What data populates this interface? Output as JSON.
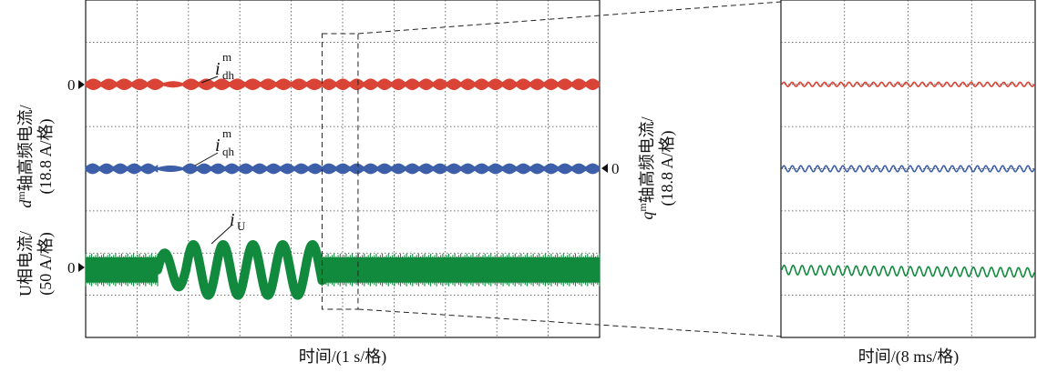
{
  "chart_data": [
    {
      "type": "line",
      "title": "",
      "xlabel": "时间/(1 s/格)",
      "x_divisions": 10,
      "y_divisions": 8,
      "grid": true,
      "left_axis_labels": [
        {
          "prefix": "d",
          "sup": "m",
          "text": "轴高频电流/",
          "scale": "(18.8 A/格)"
        },
        {
          "prefix": "",
          "sup": "",
          "text": "U相电流/",
          "scale": "(50 A/格)"
        }
      ],
      "right_axis_label": {
        "prefix": "q",
        "sup": "m",
        "text": "轴高频电流/",
        "scale": "(18.8 A/格)"
      },
      "zero_markers": [
        "0",
        "0",
        "0"
      ],
      "series": [
        {
          "name": "i",
          "sub": "dh",
          "sup": "m",
          "color": "#d94436",
          "offset_div": 2.0,
          "segments": [
            {
              "x_start": 0.0,
              "x_end": 1.5,
              "amplitude_div": 0.13,
              "envelope_period_div": 0.3
            },
            {
              "x_start": 1.5,
              "x_end": 1.9,
              "amplitude_div": 0.07,
              "envelope_period_div": 0.4
            },
            {
              "x_start": 1.9,
              "x_end": 4.6,
              "amplitude_div": 0.13,
              "envelope_period_div": 0.3
            },
            {
              "x_start": 4.6,
              "x_end": 10.0,
              "amplitude_div": 0.13,
              "envelope_period_div": 0.27
            }
          ]
        },
        {
          "name": "i",
          "sub": "qh",
          "sup": "m",
          "color": "#3d5ea8",
          "offset_div": 0.0,
          "segments": [
            {
              "x_start": 0.0,
              "x_end": 1.4,
              "amplitude_div": 0.12,
              "envelope_period_div": 0.27
            },
            {
              "x_start": 1.4,
              "x_end": 1.9,
              "amplitude_div": 0.07,
              "envelope_period_div": 0.5
            },
            {
              "x_start": 1.9,
              "x_end": 10.0,
              "amplitude_div": 0.12,
              "envelope_period_div": 0.27
            }
          ]
        },
        {
          "name": "i",
          "sub": "U",
          "sup": "",
          "color": "#128a3e",
          "offset_div": -2.4,
          "segments": [
            {
              "x_start": 0.0,
              "x_end": 1.4,
              "type": "dense",
              "amplitude_div": 0.3
            },
            {
              "x_start": 1.4,
              "x_end": 1.95,
              "type": "wave",
              "amplitude_div": 0.4,
              "period_div": 0.55
            },
            {
              "x_start": 1.95,
              "x_end": 4.6,
              "type": "wave",
              "amplitude_div": 0.6,
              "period_div": 0.58
            },
            {
              "x_start": 4.6,
              "x_end": 10.0,
              "type": "dense",
              "amplitude_div": 0.3
            }
          ]
        }
      ],
      "zoom_window": {
        "x_start": 4.6,
        "x_end": 5.3
      }
    },
    {
      "type": "line",
      "title": "",
      "xlabel": "时间/(8 ms/格)",
      "x_divisions": 4,
      "y_divisions": 8,
      "grid": true,
      "series": [
        {
          "name": "i_dh^m",
          "color": "#d94436",
          "offset_div": 2.0,
          "amplitude_div": 0.05,
          "cycles": 31
        },
        {
          "name": "i_qh^m",
          "color": "#3d5ea8",
          "offset_div": 0.0,
          "amplitude_div": 0.07,
          "cycles": 30
        },
        {
          "name": "i_U",
          "color": "#128a3e",
          "offset_div": -2.4,
          "amplitude_div": 0.11,
          "cycles": 28,
          "trend_div": -0.06
        }
      ]
    }
  ]
}
